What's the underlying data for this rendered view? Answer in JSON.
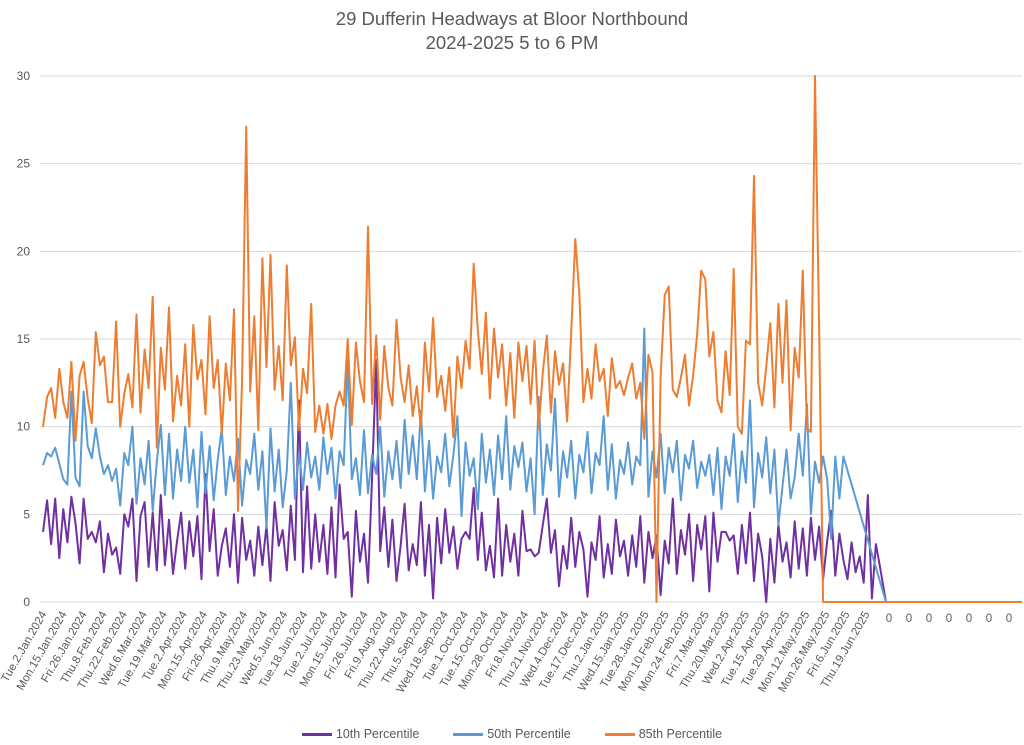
{
  "chart_data": {
    "type": "line",
    "title": "29 Dufferin Headways at Bloor Northbound",
    "subtitle": "2024-2025 5 to 6 PM",
    "xlabel": "",
    "ylabel": "",
    "ylim": [
      0,
      30
    ],
    "yticks": [
      0,
      5,
      10,
      15,
      20,
      25,
      30
    ],
    "grid": true,
    "legend_position": "bottom",
    "x_tick_labels": [
      "Tue.2.Jan.2024",
      "Mon.15.Jan.2024",
      "Fri.26.Jan.2024",
      "Thu.8.Feb.2024",
      "Thu.22.Feb.2024",
      "Wed.6.Mar.2024",
      "Tue.19.Mar.2024",
      "Tue.2.Apr.2024",
      "Mon.15.Apr.2024",
      "Fri.26.Apr.2024",
      "Thu.9.May.2024",
      "Thu.23.May.2024",
      "Wed.5.Jun.2024",
      "Tue.18.Jun.2024",
      "Tue.2.Jul.2024",
      "Mon.15.Jul.2024",
      "Fri.26.Jul.2024",
      "Fri.9.Aug.2024",
      "Thu.22.Aug.2024",
      "Thu.5.Sep.2024",
      "Wed.18.Sep.2024",
      "Tue.1.Oct.2024",
      "Tue.15.Oct.2024",
      "Mon.28.Oct.2024",
      "Fri.8.Nov.2024",
      "Thu.21.Nov.2024",
      "Wed.4.Dec.2024",
      "Tue.17.Dec.2024",
      "Thu.2.Jan.2025",
      "Wed.15.Jan.2025",
      "Tue.28.Jan.2025",
      "Mon.10.Feb.2025",
      "Mon.24.Feb.2025",
      "Fri.7.Mar.2025",
      "Thu.20.Mar.2025",
      "Wed.2.Apr.2025",
      "Tue.15.Apr.2025",
      "Tue.29.Apr.2025",
      "Mon.12.May.2025",
      "Mon.26.May.2025",
      "Fri.6.Jun.2025",
      "Thu.19.Jun.2025",
      "0",
      "0",
      "0",
      "0",
      "0",
      "0",
      "0"
    ],
    "points_per_label": 4,
    "series": [
      {
        "name": "10th Percentile",
        "color": "#7030A0",
        "values": [
          4.0,
          5.8,
          3.3,
          5.9,
          2.5,
          5.3,
          3.4,
          6.0,
          4.5,
          2.2,
          5.9,
          3.6,
          4.0,
          3.4,
          4.6,
          1.7,
          3.9,
          2.7,
          3.1,
          1.6,
          5.0,
          4.3,
          5.9,
          1.2,
          4.9,
          5.7,
          2.0,
          5.1,
          1.8,
          6.1,
          2.1,
          4.7,
          1.6,
          3.5,
          5.1,
          1.9,
          4.6,
          2.6,
          4.9,
          1.3,
          7.3,
          2.9,
          5.3,
          1.5,
          3.2,
          4.2,
          2.0,
          5.0,
          1.1,
          4.8,
          2.4,
          3.5,
          1.5,
          4.3,
          2.1,
          4.4,
          1.2,
          5.7,
          3.2,
          4.1,
          1.8,
          5.5,
          2.4,
          11.5,
          1.7,
          6.6,
          1.9,
          5.0,
          2.3,
          4.4,
          1.6,
          5.4,
          1.4,
          6.7,
          3.6,
          4.0,
          0.3,
          5.2,
          2.3,
          3.9,
          1.1,
          7.1,
          13.8,
          2.9,
          5.4,
          2.0,
          4.7,
          1.2,
          3.2,
          5.6,
          1.8,
          3.3,
          2.1,
          5.7,
          1.5,
          4.4,
          0.2,
          4.8,
          2.2,
          5.3,
          2.8,
          4.3,
          1.9,
          3.6,
          4.0,
          3.6,
          6.5,
          2.4,
          5.1,
          1.8,
          3.2,
          1.4,
          5.9,
          1.5,
          4.4,
          2.3,
          3.9,
          1.5,
          5.2,
          2.9,
          3.0,
          2.6,
          2.8,
          4.4,
          5.9,
          2.8,
          4.1,
          0.9,
          3.2,
          1.9,
          4.8,
          2.0,
          4.0,
          3.0,
          0.3,
          3.4,
          2.4,
          4.9,
          1.4,
          3.3,
          1.6,
          4.7,
          2.6,
          3.5,
          1.5,
          3.8,
          2.0,
          4.9,
          1.1,
          4.0,
          2.5,
          3.8,
          0.4,
          3.5,
          2.2,
          5.9,
          1.6,
          4.1,
          2.7,
          5.0,
          1.2,
          4.4,
          3.0,
          4.9,
          0.6,
          5.1,
          2.3,
          4.0,
          4.0,
          3.5,
          3.8,
          1.6,
          4.4,
          2.2,
          5.1,
          1.2,
          3.9,
          2.6,
          0.0,
          3.6,
          1.1,
          4.4,
          2.3,
          3.4,
          1.4,
          4.6,
          1.9,
          4.2,
          1.5,
          4.8,
          2.4,
          4.3,
          1.3,
          3.5,
          5.2,
          1.5,
          3.9,
          2.4,
          1.3,
          3.4,
          1.7,
          2.6,
          1.1,
          6.1,
          0.2,
          3.3,
          2.0
        ]
      },
      {
        "name": "50th Percentile",
        "color": "#5B9BD5",
        "values": [
          7.8,
          8.5,
          8.3,
          8.8,
          7.9,
          7.0,
          6.7,
          12.0,
          7.1,
          6.6,
          12.0,
          8.9,
          8.2,
          9.9,
          8.3,
          7.3,
          7.8,
          6.9,
          7.6,
          5.5,
          8.5,
          7.8,
          10.0,
          5.6,
          8.2,
          6.7,
          9.2,
          5.2,
          8.0,
          10.1,
          6.1,
          9.6,
          5.9,
          8.7,
          6.9,
          10.0,
          6.8,
          8.7,
          5.4,
          9.7,
          6.2,
          8.9,
          5.8,
          8.1,
          9.9,
          6.1,
          8.3,
          6.9,
          9.3,
          5.5,
          8.1,
          7.3,
          9.6,
          6.4,
          8.6,
          4.2,
          9.9,
          6.3,
          8.7,
          5.4,
          7.5,
          12.5,
          5.9,
          8.5,
          6.4,
          9.1,
          7.1,
          8.3,
          6.4,
          9.4,
          7.3,
          8.8,
          5.9,
          8.6,
          7.8,
          13.8,
          7.0,
          8.2,
          6.1,
          9.8,
          6.2,
          8.4,
          7.3,
          10.0,
          6.0,
          8.6,
          7.0,
          9.2,
          6.5,
          10.4,
          7.3,
          9.5,
          7.0,
          10.9,
          6.3,
          9.2,
          5.9,
          8.3,
          7.4,
          9.6,
          6.6,
          8.4,
          10.6,
          4.9,
          9.1,
          7.2,
          8.2,
          5.3,
          9.6,
          6.8,
          8.7,
          6.1,
          9.5,
          7.0,
          10.6,
          6.4,
          8.9,
          7.7,
          9.1,
          6.3,
          8.2,
          5.0,
          11.7,
          6.1,
          9.0,
          7.5,
          11.6,
          6.0,
          8.6,
          7.1,
          9.2,
          5.9,
          8.4,
          7.4,
          9.7,
          6.2,
          8.5,
          7.8,
          10.6,
          6.4,
          9.0,
          5.9,
          8.1,
          7.3,
          9.1,
          6.7,
          8.3,
          7.8,
          15.6,
          6.0,
          8.6,
          7.1,
          9.6,
          6.2,
          8.8,
          7.4,
          9.2,
          5.8,
          8.4,
          7.6,
          9.2,
          6.5,
          8.0,
          7.2,
          8.4,
          6.1,
          8.8,
          5.3,
          8.3,
          7.2,
          9.6,
          5.7,
          8.6,
          6.8,
          11.5,
          5.4,
          8.5,
          7.1,
          9.4,
          6.2,
          8.7,
          4.4,
          6.6,
          8.7,
          5.9,
          7.1,
          9.6,
          7.2,
          11.3,
          5.0,
          8.0,
          6.8,
          8.3,
          7.0,
          3.6,
          8.3,
          5.9,
          8.3
        ]
      },
      {
        "name": "85th Percentile",
        "color": "#ED7D31",
        "values": [
          10.0,
          11.7,
          12.2,
          10.5,
          13.3,
          11.4,
          10.5,
          13.7,
          9.2,
          12.9,
          13.7,
          11.6,
          10.2,
          15.4,
          13.5,
          14.0,
          11.4,
          11.4,
          16.0,
          10.0,
          11.9,
          13.0,
          11.1,
          16.4,
          10.8,
          14.4,
          12.2,
          17.4,
          8.8,
          14.5,
          12.1,
          16.8,
          10.3,
          12.9,
          11.2,
          14.7,
          10.0,
          15.8,
          12.7,
          13.8,
          10.7,
          16.3,
          12.2,
          13.8,
          9.6,
          13.6,
          11.5,
          16.7,
          5.2,
          12.7,
          27.1,
          12.0,
          16.3,
          9.8,
          19.6,
          13.4,
          19.8,
          12.1,
          14.6,
          11.5,
          19.2,
          13.5,
          15.1,
          9.8,
          13.3,
          11.9,
          17.0,
          9.7,
          11.2,
          9.6,
          11.3,
          9.3,
          11.2,
          12.0,
          11.2,
          15.0,
          10.1,
          14.8,
          12.6,
          11.4,
          21.4,
          11.3,
          15.2,
          10.4,
          14.6,
          12.2,
          11.2,
          16.1,
          12.8,
          11.4,
          13.5,
          10.6,
          12.3,
          9.9,
          14.8,
          12.0,
          16.2,
          11.7,
          12.9,
          10.9,
          13.4,
          9.4,
          14.0,
          12.2,
          14.9,
          13.3,
          19.3,
          15.5,
          13.0,
          16.5,
          11.6,
          15.6,
          12.8,
          14.7,
          11.2,
          14.2,
          10.5,
          14.8,
          12.6,
          14.6,
          11.3,
          14.9,
          9.9,
          13.1,
          15.2,
          10.8,
          14.3,
          12.4,
          13.6,
          10.3,
          15.4,
          20.7,
          17.6,
          11.4,
          13.3,
          11.6,
          14.7,
          12.6,
          13.3,
          10.6,
          13.9,
          12.2,
          12.6,
          11.8,
          12.8,
          13.6,
          11.6,
          12.5,
          9.3,
          14.1,
          13.1,
          0.0,
          12.8,
          17.5,
          18.0,
          12.1,
          11.7,
          12.8,
          14.1,
          11.2,
          12.9,
          15.3,
          18.9,
          18.4,
          14.0,
          15.4,
          11.5,
          10.8,
          14.3,
          11.8,
          19.0,
          10.0,
          9.6,
          14.9,
          14.7,
          24.3,
          12.5,
          11.2,
          13.4,
          15.9,
          11.1,
          17.0,
          12.5,
          17.2,
          9.8,
          14.5,
          12.8,
          18.9,
          9.9,
          9.7,
          30.0,
          15.7,
          0.0
        ]
      }
    ],
    "trailing_zero_categories": 7
  }
}
